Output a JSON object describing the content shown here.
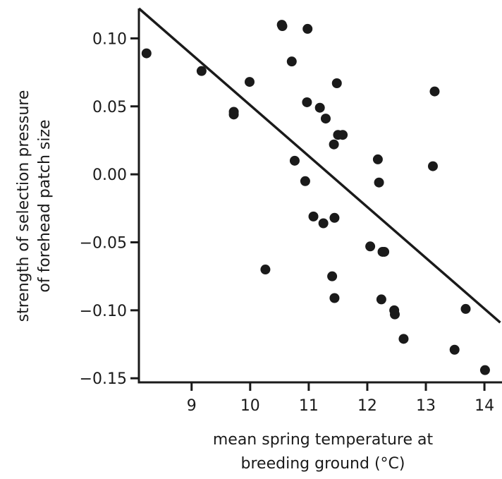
{
  "chart_data": {
    "type": "scatter",
    "title": "",
    "xlabel_lines": [
      "mean spring temperature at",
      "breeding ground (°C)"
    ],
    "ylabel_lines": [
      "strength of selection pressure",
      "of forehead patch size"
    ],
    "xlim": [
      8.1,
      14.3
    ],
    "ylim": [
      -0.153,
      0.122
    ],
    "x_ticks": [
      9,
      10,
      11,
      12,
      13,
      14
    ],
    "x_tick_labels": [
      "9",
      "10",
      "11",
      "12",
      "13",
      "14"
    ],
    "y_ticks": [
      0.1,
      0.05,
      0.0,
      -0.05,
      -0.1,
      -0.15
    ],
    "y_tick_labels": [
      "0.10",
      "0.05",
      "0.00",
      "−0.05",
      "−0.10",
      "−0.15"
    ],
    "grid": false,
    "series": [
      {
        "x": [
          8.23,
          9.17,
          9.72,
          9.72,
          9.99,
          10.26,
          10.54,
          10.55,
          10.71,
          10.76,
          10.94,
          10.97,
          10.98,
          11.08,
          11.19,
          11.25,
          11.29,
          11.4,
          11.43,
          11.44,
          11.44,
          11.48,
          11.5,
          11.58,
          12.05,
          12.18,
          12.2,
          12.24,
          12.26,
          12.29,
          12.46,
          12.47,
          12.62,
          13.12,
          13.15,
          13.49,
          13.68,
          14.01
        ],
        "y": [
          0.089,
          0.076,
          0.046,
          0.044,
          0.068,
          -0.07,
          0.11,
          0.109,
          0.083,
          0.01,
          -0.005,
          0.053,
          0.107,
          -0.031,
          0.049,
          -0.036,
          0.041,
          -0.075,
          0.022,
          -0.091,
          -0.032,
          0.067,
          0.029,
          0.029,
          -0.053,
          0.011,
          -0.006,
          -0.092,
          -0.057,
          -0.057,
          -0.1,
          -0.103,
          -0.121,
          0.006,
          0.061,
          -0.129,
          -0.099,
          -0.144
        ]
      }
    ],
    "trend_line": {
      "x": [
        8.1,
        14.27
      ],
      "y": [
        0.122,
        -0.109
      ]
    },
    "colors": {
      "marker": "#1a1a1a",
      "line": "#1a1a1a",
      "axis": "#1a1a1a"
    }
  }
}
